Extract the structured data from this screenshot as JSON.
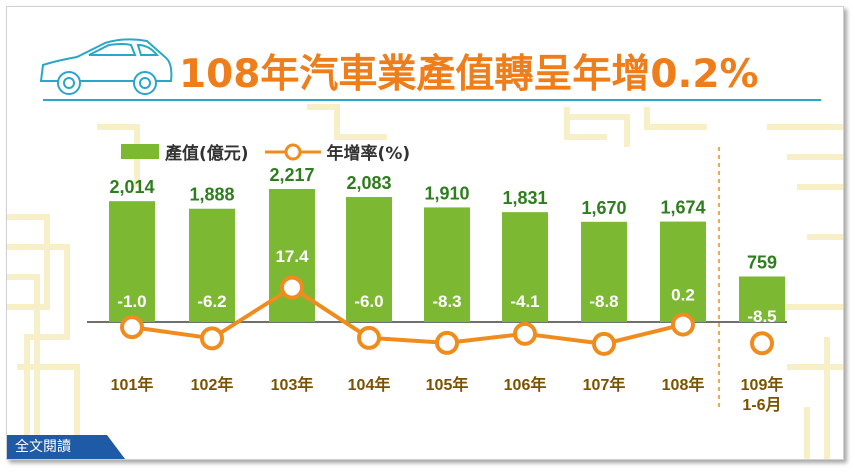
{
  "title": "108年汽車業產值轉呈年增0.2%",
  "read_full_label": "全文閱讀",
  "colors": {
    "bar": "#7cb832",
    "line": "#f08c1e",
    "title": "#ee7d1a",
    "value_label": "#2e7d1e",
    "axis_label": "#7a5200"
  },
  "icons": {
    "car": "car-outline-icon"
  },
  "chart_data": {
    "type": "bar",
    "categories": [
      "101年",
      "102年",
      "103年",
      "104年",
      "105年",
      "106年",
      "107年",
      "108年",
      "109年\n1-6月"
    ],
    "legend_position": "top-left",
    "series": [
      {
        "name": "產值(億元)",
        "type": "bar",
        "values": [
          2014,
          1888,
          2217,
          2083,
          1910,
          1831,
          1670,
          1674,
          759
        ],
        "labels": [
          "2,014",
          "1,888",
          "2,217",
          "2,083",
          "1,910",
          "1,831",
          "1,670",
          "1,674",
          "759"
        ]
      },
      {
        "name": "年增率(%)",
        "type": "line",
        "values": [
          -1.0,
          -6.2,
          17.4,
          -6.0,
          -8.3,
          -4.1,
          -8.8,
          0.2,
          -8.5
        ],
        "labels": [
          "-1.0",
          "-6.2",
          "17.4",
          "-6.0",
          "-8.3",
          "-4.1",
          "-8.8",
          "0.2",
          "-8.5"
        ]
      }
    ],
    "ylim_bar": [
      0,
      2400
    ],
    "ylim_rate": [
      -20,
      20
    ],
    "grid": false
  }
}
